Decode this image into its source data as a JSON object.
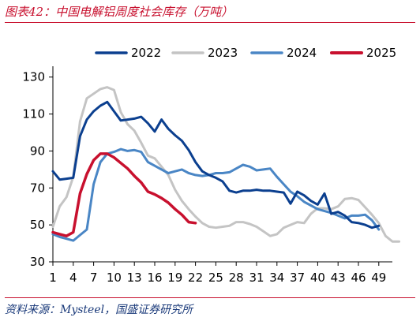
{
  "header": {
    "title": "图表42：中国电解铝周度社会库存（万吨）"
  },
  "footer": {
    "source": "资料来源：Mysteel，国盛证券研究所"
  },
  "chart_data": {
    "type": "line",
    "title": "图表42：中国电解铝周度社会库存（万吨）",
    "xlabel": "",
    "ylabel": "",
    "xlim": [
      1,
      51
    ],
    "ylim": [
      30,
      135
    ],
    "x_ticks": [
      1,
      4,
      7,
      10,
      13,
      16,
      19,
      22,
      25,
      28,
      31,
      34,
      37,
      40,
      43,
      46,
      49
    ],
    "y_ticks": [
      30,
      50,
      70,
      90,
      110,
      130
    ],
    "legend_position": "top",
    "series": [
      {
        "name": "2022",
        "color": "#0b3f8f",
        "width": 3,
        "values": [
          79,
          74.5,
          75,
          75.5,
          98,
          107,
          111.5,
          114.5,
          116.5,
          111.5,
          106.5,
          107,
          107.5,
          108.5,
          105,
          100.5,
          107,
          102,
          98.5,
          95.5,
          90.5,
          84,
          79,
          77,
          75.5,
          73.5,
          68.5,
          67.5,
          68.5,
          68.5,
          69,
          68.5,
          68.5,
          68,
          67.5,
          61.5,
          68,
          66,
          63,
          61,
          67,
          56,
          57,
          55,
          51.5,
          51,
          50,
          48.5,
          49.5
        ]
      },
      {
        "name": "2023",
        "color": "#c4c4c4",
        "width": 3,
        "values": [
          49,
          60,
          65,
          76,
          106,
          118.5,
          121,
          123.5,
          124.5,
          123,
          111,
          104.5,
          101,
          94.5,
          87.5,
          86,
          81.5,
          77,
          69,
          63,
          58.5,
          54.5,
          51,
          49,
          48.5,
          49,
          49.5,
          51.5,
          51.5,
          50.5,
          49,
          46.5,
          44,
          45,
          48.5,
          50,
          51.5,
          51,
          56,
          59,
          59,
          58.5,
          60,
          64,
          64.5,
          63.5,
          59.5,
          55.5,
          51,
          44,
          41,
          41
        ]
      },
      {
        "name": "2024",
        "color": "#4a86c5",
        "width": 3,
        "values": [
          45,
          43.5,
          42.5,
          41.5,
          44.5,
          47.5,
          72,
          84,
          88.5,
          89.5,
          91,
          90,
          90.5,
          89.5,
          84,
          82,
          80,
          78,
          79,
          80,
          78,
          77,
          76.5,
          77,
          78,
          78,
          78.5,
          80.5,
          82.5,
          81.5,
          79.5,
          80,
          80.5,
          76,
          72,
          68,
          65.5,
          62.5,
          60.5,
          58.5,
          57.5,
          56.5,
          55,
          53.5,
          55,
          55,
          55.5,
          52.5,
          47.5
        ]
      },
      {
        "name": "2025",
        "color": "#c8102e",
        "width": 3.5,
        "values": [
          46,
          45,
          44,
          46,
          67,
          77.5,
          85,
          88.5,
          88.5,
          86.5,
          83.5,
          80.5,
          76.5,
          73,
          68,
          66.5,
          64.5,
          62,
          58.5,
          55.5,
          51.5,
          51
        ]
      }
    ]
  }
}
